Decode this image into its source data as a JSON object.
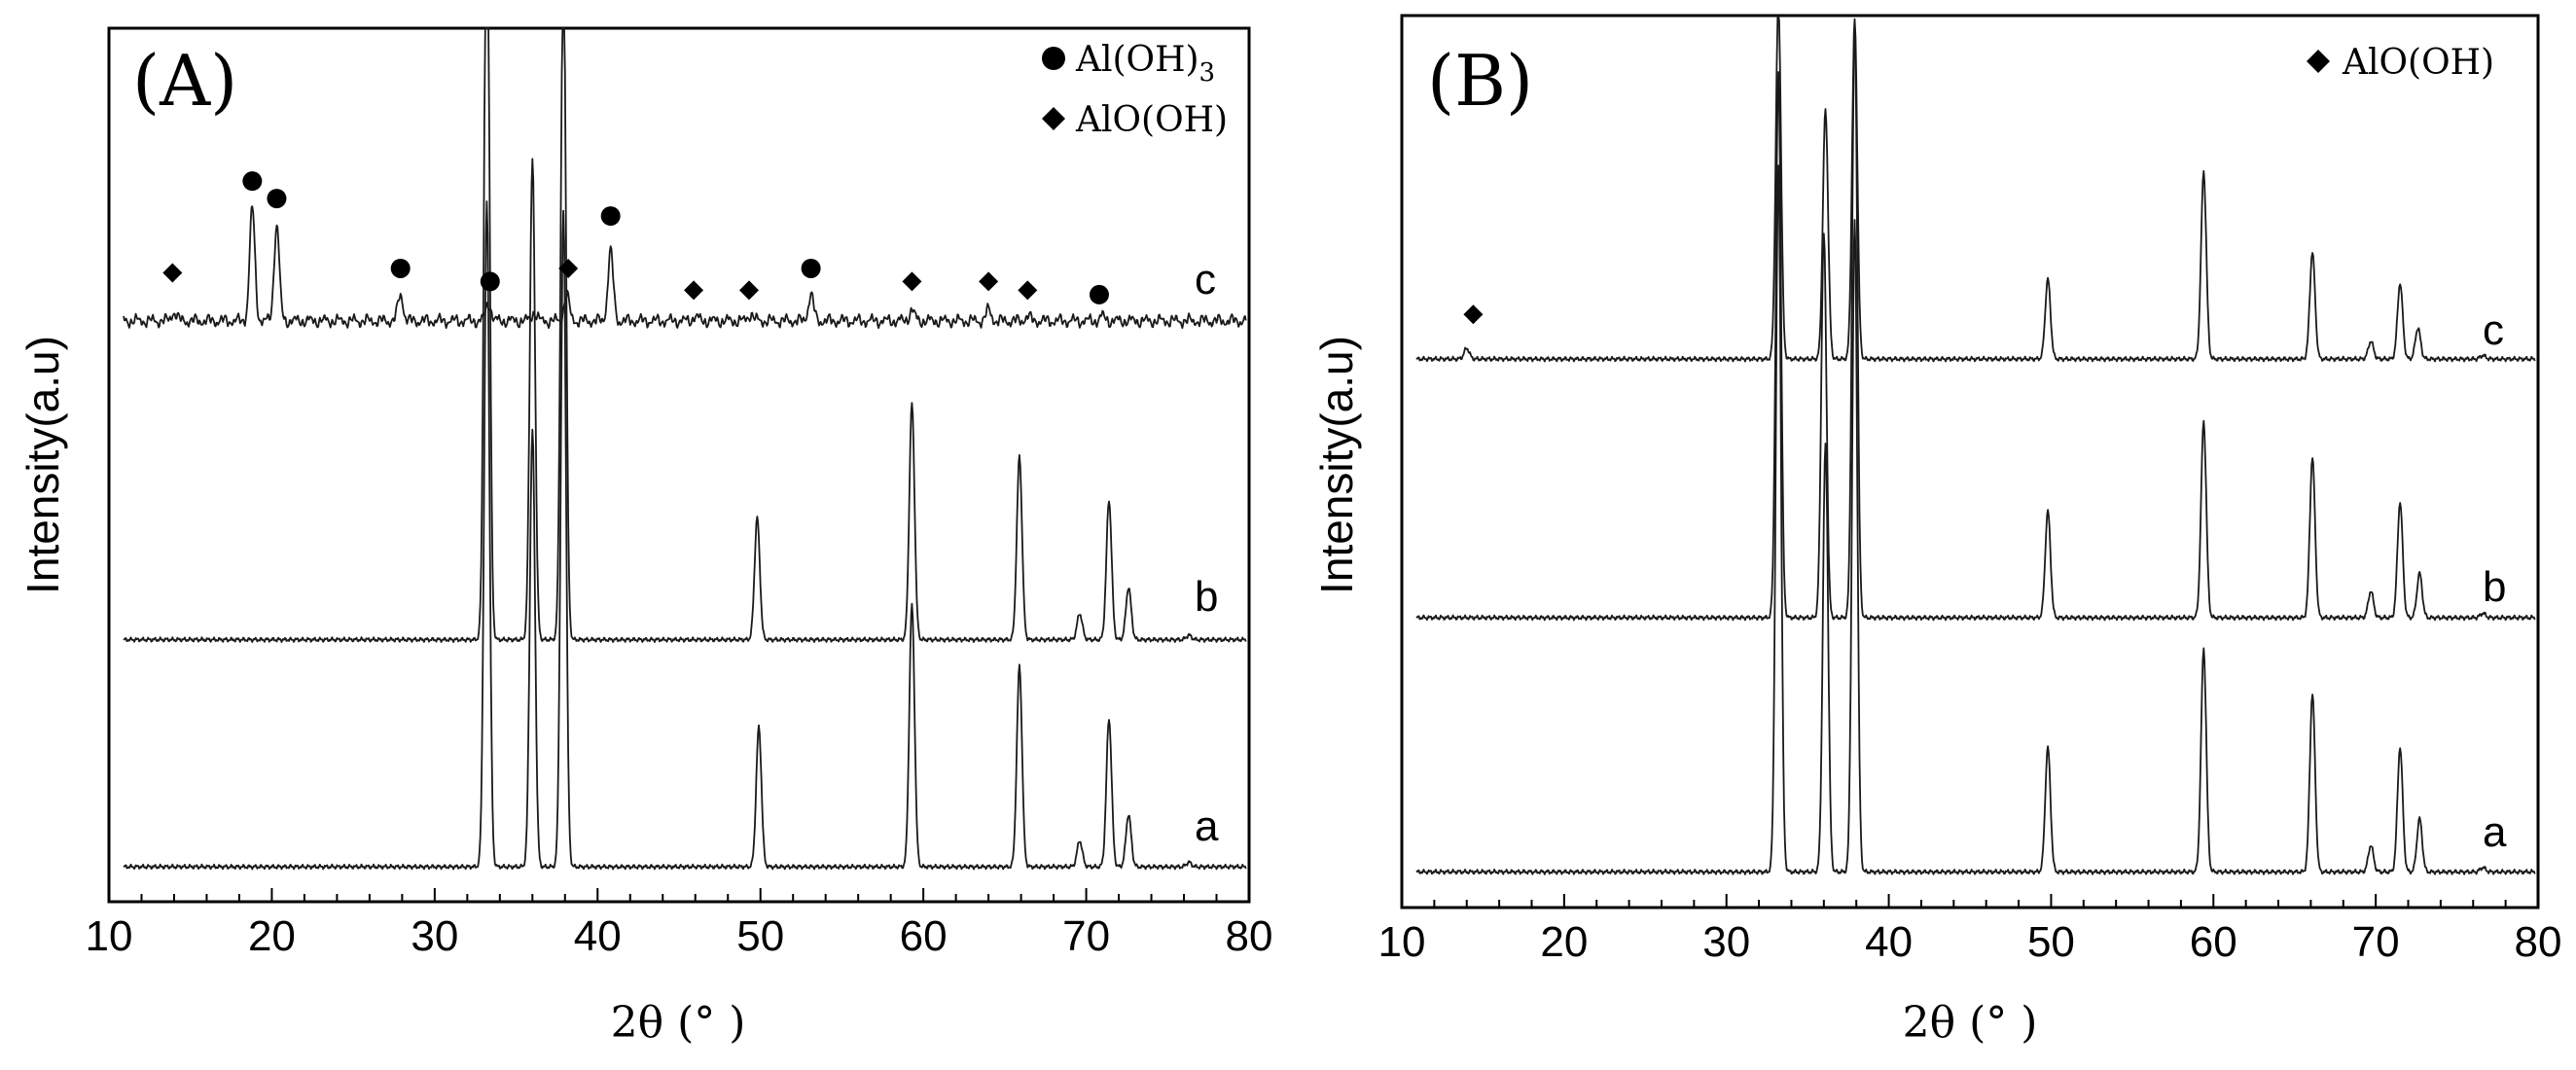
{
  "chart_data": [
    {
      "panel": "(A)",
      "type": "line",
      "title": "",
      "xlabel": "2θ (° )",
      "ylabel": "Intensity(a.u)",
      "xlim": [
        10,
        80
      ],
      "x_ticks": [
        10,
        20,
        30,
        40,
        50,
        60,
        70,
        80
      ],
      "legend": [
        {
          "marker": "circle",
          "label": "Al(OH)",
          "subscript": "3"
        },
        {
          "marker": "diamond",
          "label": "AlO(OH)"
        }
      ],
      "legend_position": "top-right",
      "series": [
        {
          "name": "a",
          "baseline": 0.04,
          "peaks": [
            [
              33.2,
              0.76
            ],
            [
              36.0,
              0.5
            ],
            [
              37.9,
              0.75
            ],
            [
              49.9,
              0.16
            ],
            [
              59.3,
              0.3
            ],
            [
              65.9,
              0.23
            ],
            [
              69.6,
              0.03
            ],
            [
              71.4,
              0.17
            ],
            [
              72.6,
              0.06
            ],
            [
              76.3,
              0.005
            ]
          ]
        },
        {
          "name": "b",
          "baseline": 0.3,
          "peaks": [
            [
              33.2,
              0.92
            ],
            [
              36.0,
              0.55
            ],
            [
              37.9,
              0.79
            ],
            [
              49.8,
              0.14
            ],
            [
              59.3,
              0.27
            ],
            [
              65.9,
              0.21
            ],
            [
              69.6,
              0.03
            ],
            [
              71.4,
              0.16
            ],
            [
              72.6,
              0.06
            ],
            [
              76.3,
              0.005
            ]
          ]
        },
        {
          "name": "c",
          "baseline": 0.665,
          "peaks": [
            [
              14.0,
              0.01
            ],
            [
              18.8,
              0.13
            ],
            [
              20.3,
              0.11
            ],
            [
              27.9,
              0.03
            ],
            [
              33.3,
              0.02
            ],
            [
              36.1,
              0.01
            ],
            [
              38.1,
              0.03
            ],
            [
              40.8,
              0.08
            ],
            [
              46.0,
              0.005
            ],
            [
              49.4,
              0.008
            ],
            [
              53.1,
              0.03
            ],
            [
              59.3,
              0.012
            ],
            [
              64.0,
              0.012
            ],
            [
              66.4,
              0.005
            ],
            [
              71.0,
              0.005
            ]
          ]
        }
      ],
      "markers": [
        {
          "shape": "diamond",
          "x": 13.9,
          "y": 0.72
        },
        {
          "shape": "circle",
          "x": 18.8,
          "y": 0.825
        },
        {
          "shape": "circle",
          "x": 20.3,
          "y": 0.805
        },
        {
          "shape": "circle",
          "x": 27.9,
          "y": 0.725
        },
        {
          "shape": "circle",
          "x": 33.4,
          "y": 0.71
        },
        {
          "shape": "diamond",
          "x": 38.2,
          "y": 0.725
        },
        {
          "shape": "circle",
          "x": 40.8,
          "y": 0.785
        },
        {
          "shape": "diamond",
          "x": 45.9,
          "y": 0.7
        },
        {
          "shape": "diamond",
          "x": 49.3,
          "y": 0.7
        },
        {
          "shape": "circle",
          "x": 53.1,
          "y": 0.725
        },
        {
          "shape": "diamond",
          "x": 59.3,
          "y": 0.71
        },
        {
          "shape": "diamond",
          "x": 64.0,
          "y": 0.71
        },
        {
          "shape": "diamond",
          "x": 66.4,
          "y": 0.7
        },
        {
          "shape": "circle",
          "x": 70.8,
          "y": 0.695
        }
      ]
    },
    {
      "panel": "(B)",
      "type": "line",
      "title": "",
      "xlabel": "2θ (° )",
      "ylabel": "Intensity(a.u)",
      "xlim": [
        10,
        80
      ],
      "x_ticks": [
        10,
        20,
        30,
        40,
        50,
        60,
        70,
        80
      ],
      "legend": [
        {
          "marker": "diamond",
          "label": "AlO(OH)"
        }
      ],
      "legend_position": "top-right",
      "series": [
        {
          "name": "a",
          "baseline": 0.04,
          "peaks": [
            [
              33.2,
              0.79
            ],
            [
              36.1,
              0.48
            ],
            [
              37.9,
              0.73
            ],
            [
              49.8,
              0.14
            ],
            [
              59.4,
              0.25
            ],
            [
              66.1,
              0.2
            ],
            [
              69.7,
              0.03
            ],
            [
              71.5,
              0.14
            ],
            [
              72.7,
              0.06
            ],
            [
              76.6,
              0.005
            ]
          ]
        },
        {
          "name": "b",
          "baseline": 0.325,
          "peaks": [
            [
              33.2,
              0.61
            ],
            [
              36.0,
              0.43
            ],
            [
              37.9,
              0.665
            ],
            [
              49.8,
              0.12
            ],
            [
              59.4,
              0.22
            ],
            [
              66.1,
              0.18
            ],
            [
              69.7,
              0.03
            ],
            [
              71.5,
              0.13
            ],
            [
              72.7,
              0.05
            ],
            [
              76.6,
              0.005
            ]
          ]
        },
        {
          "name": "c",
          "baseline": 0.615,
          "peaks": [
            [
              14.0,
              0.012
            ],
            [
              33.2,
              0.4
            ],
            [
              36.1,
              0.28
            ],
            [
              37.9,
              0.38
            ],
            [
              49.8,
              0.09
            ],
            [
              59.4,
              0.21
            ],
            [
              66.1,
              0.12
            ],
            [
              69.7,
              0.02
            ],
            [
              71.5,
              0.085
            ],
            [
              72.6,
              0.035
            ],
            [
              76.6,
              0.004
            ]
          ]
        }
      ],
      "markers": [
        {
          "shape": "diamond",
          "x": 14.4,
          "y": 0.665
        }
      ]
    }
  ],
  "trace_labels": [
    "a",
    "b",
    "c"
  ]
}
